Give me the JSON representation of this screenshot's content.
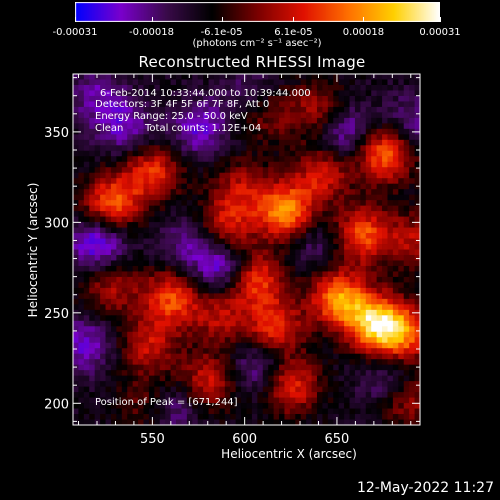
{
  "colorbar": {
    "ticks": [
      "-0.00031",
      "-0.00018",
      "-6.1e-05",
      "6.1e-05",
      "0.00018",
      "0.00031"
    ],
    "tick_values": [
      -0.00031,
      -0.00018,
      -6.1e-05,
      6.1e-05,
      0.00018,
      0.00031
    ],
    "range": [
      -0.00031,
      0.00031
    ],
    "units": "(photons cm⁻² s⁻¹ asec⁻²)",
    "colors": [
      "#0000ff",
      "#7a00cc",
      "#3a0a4a",
      "#000000",
      "#7a0000",
      "#e01000",
      "#ff7000",
      "#ffd000",
      "#ffffff"
    ]
  },
  "annotations": {
    "time_range": "6-Feb-2014 10:33:44.000 to 10:39:44.000",
    "detectors": "Detectors: 3F 4F 5F 6F 7F 8F, Att 0",
    "energy_range": "Energy Range: 25.0 - 50.0 keV",
    "method": "Clean",
    "total_counts": "Total counts: 1.12E+04",
    "peak": "Position of Peak = [671,244]"
  },
  "timestamp": "12-May-2022 11:27",
  "chart_data": {
    "type": "heatmap",
    "title": "Reconstructed RHESSI Image",
    "xlabel": "Heliocentric X (arcsec)",
    "ylabel": "Heliocentric Y (arcsec)",
    "xlim": [
      507,
      695
    ],
    "ylim": [
      188,
      382
    ],
    "x_ticks": [
      550,
      600,
      650
    ],
    "y_ticks": [
      200,
      250,
      300,
      350
    ],
    "grid": false,
    "peak_position": [
      671,
      244
    ],
    "hotspots": [
      {
        "x": 528,
        "y": 311,
        "v": 0.00022
      },
      {
        "x": 550,
        "y": 328,
        "v": 0.00018
      },
      {
        "x": 527,
        "y": 264,
        "v": 0.00012
      },
      {
        "x": 560,
        "y": 258,
        "v": 0.0002
      },
      {
        "x": 548,
        "y": 232,
        "v": 0.00014
      },
      {
        "x": 622,
        "y": 306,
        "v": 0.00027
      },
      {
        "x": 590,
        "y": 298,
        "v": 0.00016
      },
      {
        "x": 606,
        "y": 268,
        "v": 0.0002
      },
      {
        "x": 616,
        "y": 242,
        "v": 0.00018
      },
      {
        "x": 651,
        "y": 258,
        "v": 0.00026
      },
      {
        "x": 664,
        "y": 293,
        "v": 0.00021
      },
      {
        "x": 671,
        "y": 244,
        "v": 0.00031
      },
      {
        "x": 686,
        "y": 238,
        "v": 0.0002
      },
      {
        "x": 676,
        "y": 338,
        "v": 0.00024
      },
      {
        "x": 642,
        "y": 326,
        "v": 0.00015
      },
      {
        "x": 625,
        "y": 210,
        "v": 0.00018
      },
      {
        "x": 580,
        "y": 212,
        "v": 0.00015
      },
      {
        "x": 548,
        "y": 200,
        "v": 0.0001
      },
      {
        "x": 640,
        "y": 362,
        "v": 0.00012
      },
      {
        "x": 612,
        "y": 360,
        "v": 9e-05
      },
      {
        "x": 692,
        "y": 290,
        "v": 0.00012
      },
      {
        "x": 688,
        "y": 202,
        "v": 0.00013
      },
      {
        "x": 586,
        "y": 248,
        "v": 0.00012
      },
      {
        "x": 598,
        "y": 320,
        "v": 0.00011
      }
    ],
    "coldspots": [
      {
        "x": 520,
        "y": 288,
        "v": -0.0002
      },
      {
        "x": 535,
        "y": 352,
        "v": -0.00014
      },
      {
        "x": 575,
        "y": 352,
        "v": -0.00016
      },
      {
        "x": 588,
        "y": 275,
        "v": -0.00018
      },
      {
        "x": 608,
        "y": 220,
        "v": -0.00014
      },
      {
        "x": 655,
        "y": 350,
        "v": -0.00016
      },
      {
        "x": 690,
        "y": 355,
        "v": -0.00012
      },
      {
        "x": 513,
        "y": 232,
        "v": -0.00015
      },
      {
        "x": 560,
        "y": 198,
        "v": -0.00014
      },
      {
        "x": 638,
        "y": 288,
        "v": -0.0001
      },
      {
        "x": 678,
        "y": 212,
        "v": -0.00013
      },
      {
        "x": 520,
        "y": 370,
        "v": -0.00012
      },
      {
        "x": 603,
        "y": 372,
        "v": -0.0001
      },
      {
        "x": 570,
        "y": 288,
        "v": -0.00012
      }
    ]
  }
}
